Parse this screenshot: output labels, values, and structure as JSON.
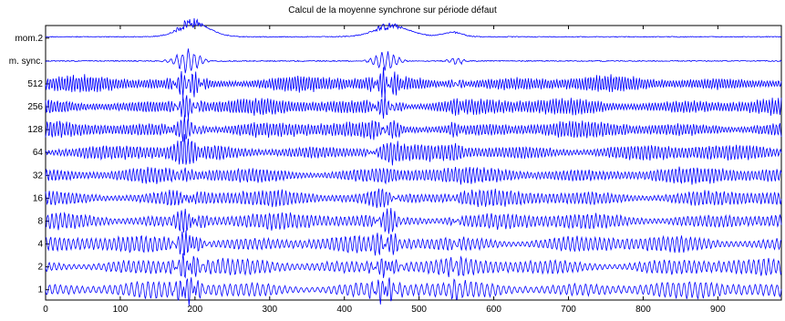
{
  "chart_data": {
    "type": "line",
    "title": "Calcul de la moyenne synchrone sur période défaut",
    "xlabel": "",
    "ylabel": "",
    "xlim": [
      0,
      985
    ],
    "x_ticks": [
      0,
      100,
      200,
      300,
      400,
      500,
      600,
      700,
      800,
      900
    ],
    "grid": false,
    "legend": "none",
    "line_color": "#0000ff",
    "rows": [
      {
        "label": "mom.2"
      },
      {
        "label": "m. sync."
      },
      {
        "label": "512"
      },
      {
        "label": "256"
      },
      {
        "label": "128"
      },
      {
        "label": "64"
      },
      {
        "label": "32"
      },
      {
        "label": "16"
      },
      {
        "label": "8"
      },
      {
        "label": "4"
      },
      {
        "label": "2"
      },
      {
        "label": "1"
      }
    ],
    "events": [
      175,
      440,
      550
    ]
  }
}
